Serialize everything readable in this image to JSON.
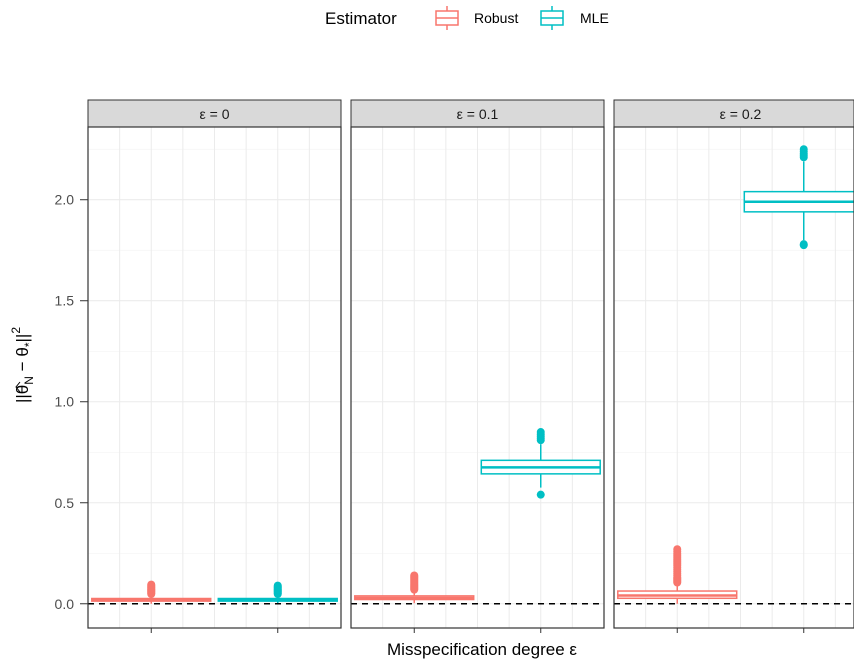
{
  "chart_data": {
    "type": "boxplot",
    "legend": {
      "title": "Estimator",
      "position": "top",
      "entries": [
        {
          "label": "Robust",
          "color": "#F8766D"
        },
        {
          "label": "MLE",
          "color": "#00BFC4"
        }
      ]
    },
    "xlabel": "Misspecification degree ε",
    "ylabel_parts": {
      "theta_hat": "θ",
      "sub_N": "N",
      "minus": "−",
      "theta_star": "θ",
      "sub_star": "*",
      "sup_2": "2"
    },
    "ylim": [
      -0.12,
      2.36
    ],
    "yticks": [
      0.0,
      0.5,
      1.0,
      1.5,
      2.0
    ],
    "ytick_labels": [
      "0.0",
      "0.5",
      "1.0",
      "1.5",
      "2.0"
    ],
    "grid": true,
    "reference_line": {
      "y": 0,
      "style": "dashed",
      "color": "#000000"
    },
    "panels": [
      {
        "strip": "ε = 0",
        "boxes": [
          {
            "estimator": "Robust",
            "color": "#F8766D",
            "q1": 0.013,
            "median": 0.019,
            "q3": 0.026,
            "whisker_low": 0.0,
            "whisker_high": 0.045,
            "outliers": [
              0.048,
              0.052,
              0.056,
              0.06,
              0.064,
              0.068,
              0.072,
              0.076,
              0.08,
              0.085,
              0.09,
              0.095
            ]
          },
          {
            "estimator": "MLE",
            "color": "#00BFC4",
            "q1": 0.013,
            "median": 0.019,
            "q3": 0.026,
            "whisker_low": 0.0,
            "whisker_high": 0.045,
            "outliers": [
              0.048,
              0.052,
              0.056,
              0.06,
              0.064,
              0.068,
              0.072,
              0.076,
              0.08,
              0.085,
              0.09
            ]
          }
        ]
      },
      {
        "strip": "ε = 0.1",
        "boxes": [
          {
            "estimator": "Robust",
            "color": "#F8766D",
            "q1": 0.021,
            "median": 0.029,
            "q3": 0.039,
            "whisker_low": 0.003,
            "whisker_high": 0.066,
            "outliers": [
              0.07,
              0.075,
              0.08,
              0.085,
              0.09,
              0.095,
              0.1,
              0.105,
              0.11,
              0.115,
              0.12,
              0.125,
              0.13,
              0.135,
              0.14
            ]
          },
          {
            "estimator": "MLE",
            "color": "#00BFC4",
            "q1": 0.643,
            "median": 0.675,
            "q3": 0.71,
            "whisker_low": 0.575,
            "whisker_high": 0.79,
            "outliers": [
              0.54,
              0.81,
              0.82,
              0.83,
              0.84,
              0.85
            ]
          }
        ]
      },
      {
        "strip": "ε = 0.2",
        "boxes": [
          {
            "estimator": "Robust",
            "color": "#F8766D",
            "q1": 0.027,
            "median": 0.041,
            "q3": 0.063,
            "whisker_low": 0.0,
            "whisker_high": 0.1,
            "outliers": [
              0.105,
              0.11,
              0.115,
              0.12,
              0.125,
              0.13,
              0.14,
              0.15,
              0.16,
              0.17,
              0.18,
              0.19,
              0.2,
              0.21,
              0.22,
              0.23,
              0.24,
              0.25,
              0.26,
              0.27
            ]
          },
          {
            "estimator": "MLE",
            "color": "#00BFC4",
            "q1": 1.94,
            "median": 1.99,
            "q3": 2.04,
            "whisker_low": 1.8,
            "whisker_high": 2.19,
            "outliers": [
              1.78,
              1.775,
              2.21,
              2.22,
              2.23,
              2.24,
              2.25
            ]
          }
        ]
      }
    ]
  }
}
